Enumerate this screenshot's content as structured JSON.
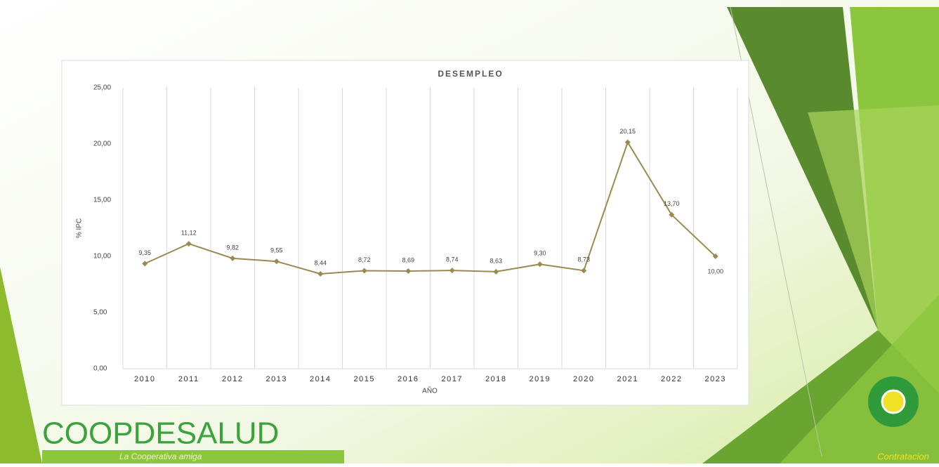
{
  "chart_data": {
    "type": "line",
    "title": "DESEMPLEO",
    "y_label": "% IPC",
    "x_label": "AÑO",
    "categories": [
      "2010",
      "2011",
      "2012",
      "2013",
      "2014",
      "2015",
      "2016",
      "2017",
      "2018",
      "2019",
      "2020",
      "2021",
      "2022",
      "2023"
    ],
    "series": [
      {
        "name": "DESEMPLEO",
        "color": "#9a8a52",
        "values": [
          9.35,
          11.12,
          9.82,
          9.55,
          8.44,
          8.72,
          8.69,
          8.74,
          8.63,
          9.3,
          8.73,
          20.15,
          13.7,
          10.0
        ],
        "value_labels": [
          "9,35",
          "11,12",
          "9,82",
          "9,55",
          "8,44",
          "8,72",
          "8,69",
          "8,74",
          "8,63",
          "9,30",
          "8,73",
          "20,15",
          "13,70",
          "10,00"
        ]
      }
    ],
    "ylim": [
      0,
      25
    ],
    "yticks": [
      {
        "value": 0,
        "label": "0,00"
      },
      {
        "value": 5,
        "label": "5,00"
      },
      {
        "value": 10,
        "label": "10,00"
      },
      {
        "value": 15,
        "label": "15,00"
      },
      {
        "value": 20,
        "label": "20,00"
      },
      {
        "value": 25,
        "label": "25,00"
      }
    ],
    "grid": false,
    "category_grid": true,
    "legend": false
  },
  "slide": {
    "brand": "COOPDESALUD",
    "tagline": "La Cooperativa amiga",
    "footer": "Contratacion"
  }
}
